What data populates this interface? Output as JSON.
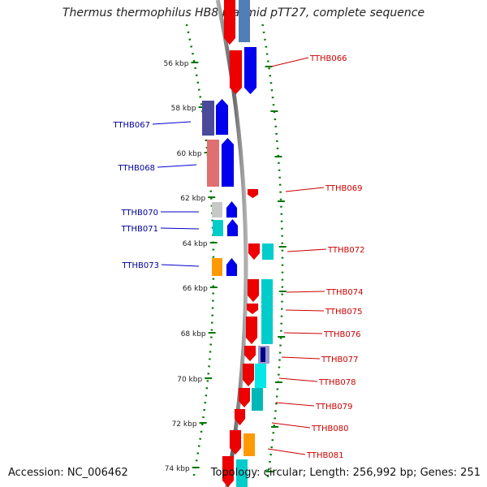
{
  "title": "Thermus thermophilus HB8 plasmid pTT27, complete sequence",
  "footer": {
    "accession": "Accession: NC_006462",
    "topology": "Topology: circular; Length: 256,992 bp; Genes: 251"
  },
  "colors": {
    "forward_label": "#cc0000",
    "reverse_label": "#000099",
    "tick": "#007700",
    "backbone": "#808080"
  },
  "tick_labels": [
    "56 kbp",
    "58 kbp",
    "60 kbp",
    "62 kbp",
    "64 kbp",
    "66 kbp",
    "68 kbp",
    "70 kbp",
    "72 kbp",
    "74 kbp"
  ],
  "reverse_genes": [
    "TTHB067",
    "TTHB068",
    "TTHB070",
    "TTHB071",
    "TTHB073"
  ],
  "forward_genes": [
    "TTHB066",
    "TTHB069",
    "TTHB072",
    "TTHB074",
    "TTHB075",
    "TTHB076",
    "TTHB077",
    "TTHB078",
    "TTHB079",
    "TTHB080",
    "TTHB081"
  ]
}
